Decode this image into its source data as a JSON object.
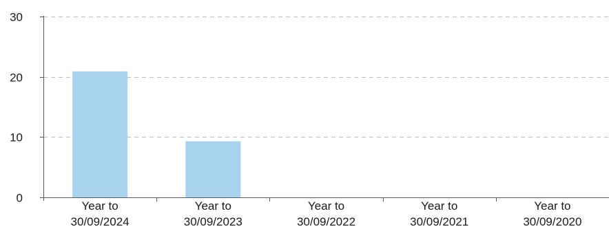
{
  "chart_data": {
    "type": "bar",
    "categories": [
      [
        "Year to",
        "30/09/2024"
      ],
      [
        "Year to",
        "30/09/2023"
      ],
      [
        "Year to",
        "30/09/2022"
      ],
      [
        "Year to",
        "30/09/2021"
      ],
      [
        "Year to",
        "30/09/2020"
      ]
    ],
    "values": [
      20.9,
      9.3,
      null,
      null,
      null
    ],
    "yticks": [
      0,
      10,
      20,
      30
    ],
    "ylim": [
      0,
      30
    ],
    "grid": true,
    "colors": {
      "bar": "#a9d2f0",
      "grid": "#bfbfbf",
      "axis": "#595959"
    }
  }
}
